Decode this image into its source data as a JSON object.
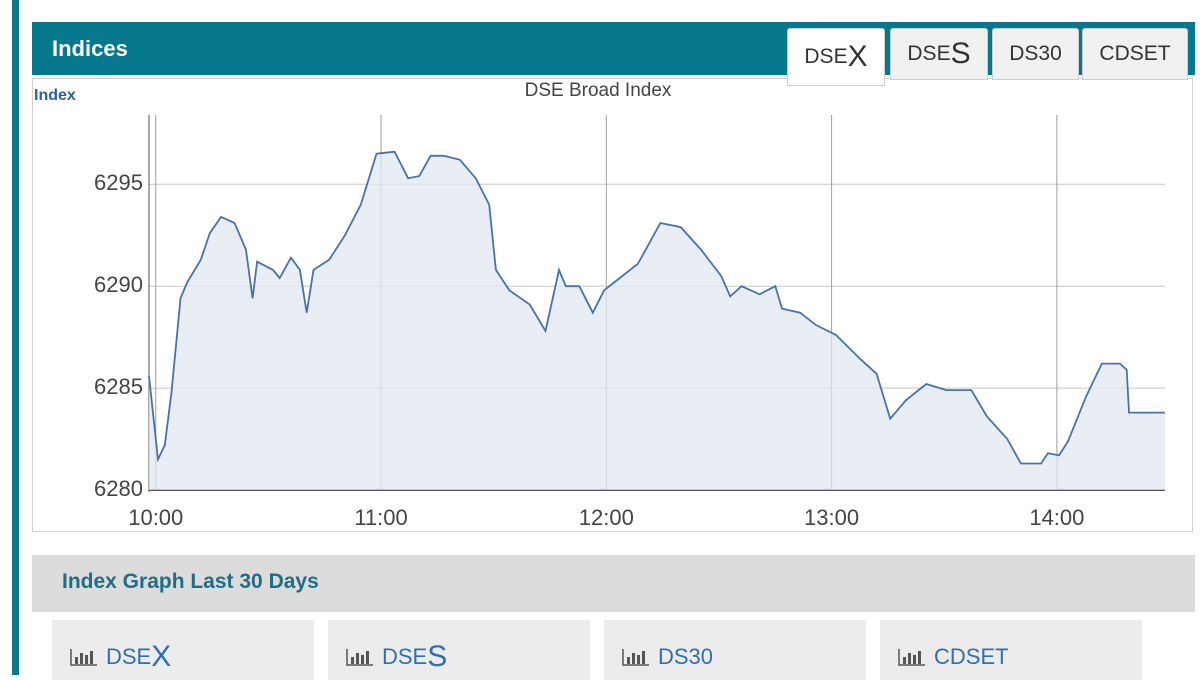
{
  "header": {
    "title": "Indices"
  },
  "tabs": [
    {
      "text": "DSE",
      "big": "X"
    },
    {
      "text": "DSE",
      "big": "S"
    },
    {
      "text": "DS30"
    },
    {
      "text": "CDSET"
    }
  ],
  "chart_data": {
    "type": "line",
    "title": "DSE Broad Index",
    "y_label": "Index",
    "color": "#4a72a8",
    "fill": "#e1e8f2",
    "grid": true,
    "x": [
      9.97,
      10.01,
      10.04,
      10.07,
      10.11,
      10.14,
      10.2,
      10.24,
      10.29,
      10.35,
      10.4,
      10.43,
      10.45,
      10.52,
      10.55,
      10.6,
      10.64,
      10.67,
      10.7,
      10.77,
      10.84,
      10.91,
      10.98,
      11.06,
      11.12,
      11.17,
      11.22,
      11.28,
      11.35,
      11.42,
      11.48,
      11.51,
      11.57,
      11.66,
      11.73,
      11.79,
      11.82,
      11.88,
      11.94,
      11.99,
      12.06,
      12.14,
      12.24,
      12.33,
      12.42,
      12.51,
      12.55,
      12.6,
      12.68,
      12.75,
      12.78,
      12.86,
      12.93,
      13.02,
      13.13,
      13.2,
      13.26,
      13.33,
      13.42,
      13.51,
      13.62,
      13.69,
      13.78,
      13.84,
      13.93,
      13.96,
      14.01,
      14.05,
      14.13,
      14.2,
      14.28,
      14.31,
      14.32,
      14.48
    ],
    "values": [
      6285.6,
      6281.5,
      6282.2,
      6284.8,
      6289.4,
      6290.2,
      6291.3,
      6292.6,
      6293.4,
      6293.1,
      6291.8,
      6289.4,
      6291.2,
      6290.8,
      6290.4,
      6291.4,
      6290.8,
      6288.7,
      6290.8,
      6291.3,
      6292.5,
      6294.0,
      6296.5,
      6296.6,
      6295.3,
      6295.4,
      6296.4,
      6296.4,
      6296.2,
      6295.3,
      6294.0,
      6290.8,
      6289.8,
      6289.1,
      6287.8,
      6290.8,
      6290.0,
      6290.0,
      6288.7,
      6289.8,
      6290.4,
      6291.1,
      6293.1,
      6292.9,
      6291.8,
      6290.5,
      6289.5,
      6290.0,
      6289.6,
      6290.0,
      6288.9,
      6288.7,
      6288.1,
      6287.6,
      6286.4,
      6285.7,
      6283.5,
      6284.4,
      6285.2,
      6284.9,
      6284.9,
      6283.6,
      6282.5,
      6281.3,
      6281.3,
      6281.8,
      6281.7,
      6282.4,
      6284.6,
      6286.2,
      6286.2,
      6285.9,
      6283.8,
      6283.8
    ],
    "xlim": [
      9.97,
      14.48
    ],
    "ylim": [
      6280,
      6298.4
    ],
    "xticks": [
      {
        "value": 10,
        "label": "10:00"
      },
      {
        "value": 11,
        "label": "11:00"
      },
      {
        "value": 12,
        "label": "12:00"
      },
      {
        "value": 13,
        "label": "13:00"
      },
      {
        "value": 14,
        "label": "14:00"
      }
    ],
    "yticks": [
      6280,
      6285,
      6290,
      6295
    ]
  },
  "section": {
    "title": "Index Graph Last 30 Days"
  },
  "buttons": [
    {
      "text": "DSE",
      "big": "X"
    },
    {
      "text": "DSE",
      "big": "S"
    },
    {
      "text": "DS30"
    },
    {
      "text": "CDSET"
    }
  ]
}
